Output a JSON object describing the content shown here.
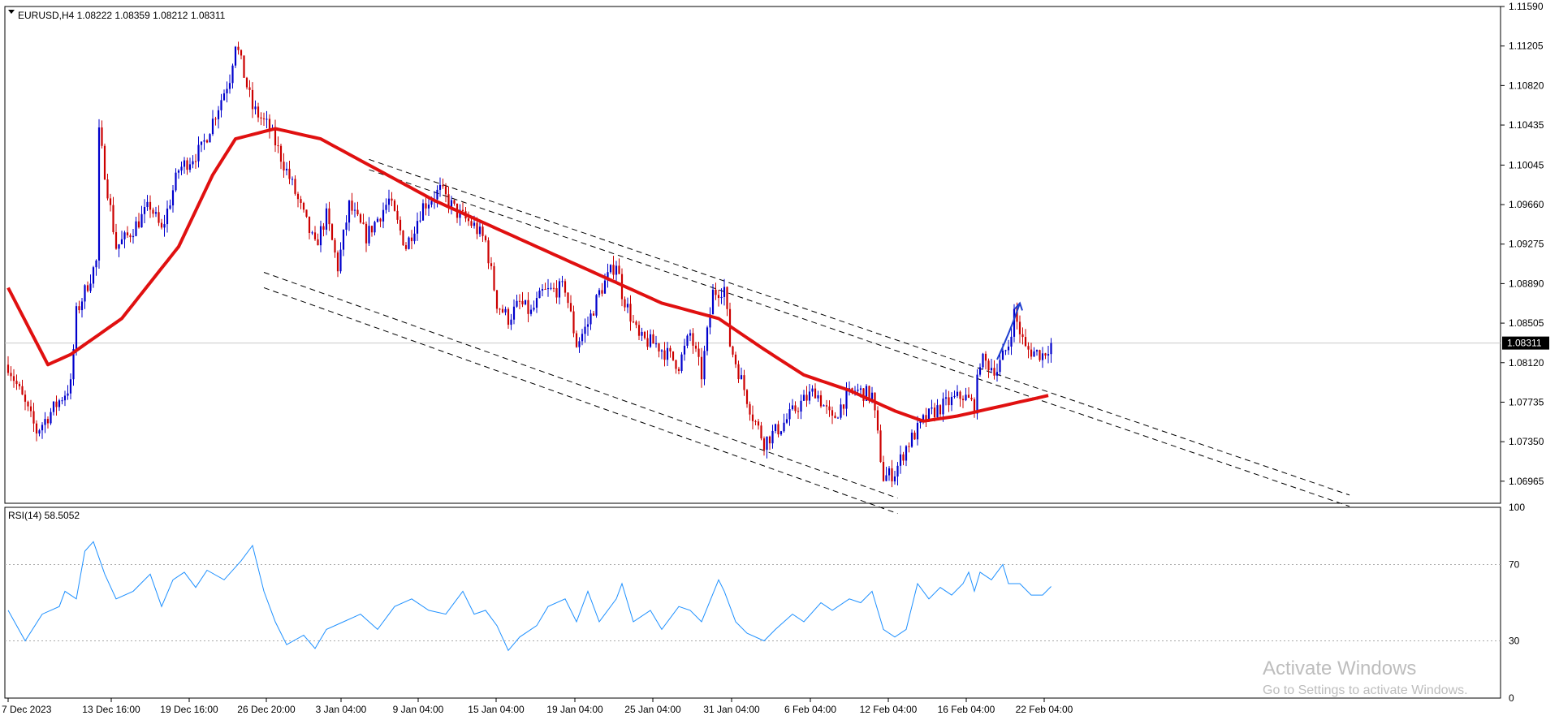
{
  "window": {
    "symbol_line": "EURUSD,H4  1.08222 1.08359 1.08212 1.08311"
  },
  "colors": {
    "bull": "#0000cc",
    "bear": "#cc0000",
    "ma": "#e01010",
    "rsi": "#1e90ff",
    "grid": "#c8c8c8",
    "price_label_bg": "#000000",
    "arrow": "#1f3fd0"
  },
  "watermark": {
    "title": "Activate Windows",
    "subtitle": "Go to Settings to activate Windows."
  },
  "chart_data": [
    {
      "type": "candlestick",
      "title": "EURUSD,H4  1.08222 1.08359 1.08212 1.08311",
      "ylim": [
        1.0675,
        1.1159
      ],
      "yticks": [
        "1.11590",
        "1.11205",
        "1.10820",
        "1.10435",
        "1.10045",
        "1.09660",
        "1.09275",
        "1.08890",
        "1.08505",
        "1.08120",
        "1.07735",
        "1.07350",
        "1.06965"
      ],
      "current_price": "1.08311",
      "xticks": [
        "7 Dec 2023",
        "13 Dec 16:00",
        "19 Dec 16:00",
        "26 Dec 20:00",
        "3 Jan 04:00",
        "9 Jan 04:00",
        "15 Jan 04:00",
        "19 Jan 04:00",
        "25 Jan 04:00",
        "31 Jan 04:00",
        "6 Feb 04:00",
        "12 Feb 04:00",
        "16 Feb 04:00",
        "22 Feb 04:00"
      ],
      "close_path": [
        [
          0,
          1.081
        ],
        [
          10,
          1.0745
        ],
        [
          22,
          1.079
        ],
        [
          24,
          1.086
        ],
        [
          31,
          1.091
        ],
        [
          32,
          1.1035
        ],
        [
          38,
          1.0925
        ],
        [
          42,
          1.0935
        ],
        [
          50,
          1.0965
        ],
        [
          54,
          1.094
        ],
        [
          60,
          1.1
        ],
        [
          68,
          1.102
        ],
        [
          78,
          1.109
        ],
        [
          80,
          1.1125
        ],
        [
          86,
          1.106
        ],
        [
          92,
          1.104
        ],
        [
          100,
          1.0985
        ],
        [
          108,
          1.0925
        ],
        [
          112,
          1.0955
        ],
        [
          116,
          1.0905
        ],
        [
          120,
          1.0965
        ],
        [
          126,
          1.0935
        ],
        [
          134,
          1.097
        ],
        [
          140,
          1.0925
        ],
        [
          146,
          1.0965
        ],
        [
          152,
          1.098
        ],
        [
          158,
          1.0958
        ],
        [
          164,
          1.0945
        ],
        [
          168,
          1.093
        ],
        [
          172,
          1.087
        ],
        [
          176,
          1.0855
        ],
        [
          180,
          1.087
        ],
        [
          184,
          1.086
        ],
        [
          188,
          1.088
        ],
        [
          196,
          1.0885
        ],
        [
          200,
          1.083
        ],
        [
          204,
          1.085
        ],
        [
          208,
          1.088
        ],
        [
          214,
          1.091
        ],
        [
          216,
          1.088
        ],
        [
          222,
          1.0835
        ],
        [
          228,
          1.083
        ],
        [
          236,
          1.081
        ],
        [
          240,
          1.084
        ],
        [
          244,
          1.08
        ],
        [
          248,
          1.088
        ],
        [
          252,
          1.0885
        ],
        [
          254,
          1.083
        ],
        [
          258,
          1.0795
        ],
        [
          262,
          1.076
        ],
        [
          266,
          1.0735
        ],
        [
          272,
          1.075
        ],
        [
          278,
          1.077
        ],
        [
          284,
          1.0785
        ],
        [
          290,
          1.0755
        ],
        [
          294,
          1.0775
        ],
        [
          298,
          1.0785
        ],
        [
          304,
          1.078
        ],
        [
          308,
          1.07
        ],
        [
          312,
          1.0705
        ],
        [
          316,
          1.073
        ],
        [
          322,
          1.0755
        ],
        [
          326,
          1.0765
        ],
        [
          332,
          1.0775
        ],
        [
          336,
          1.078
        ],
        [
          340,
          1.077
        ],
        [
          342,
          1.0815
        ],
        [
          348,
          1.0805
        ],
        [
          352,
          1.083
        ],
        [
          354,
          1.086
        ],
        [
          358,
          1.0825
        ],
        [
          364,
          1.082
        ],
        [
          367,
          1.08311
        ]
      ],
      "ma_path": [
        [
          0,
          1.0885
        ],
        [
          14,
          1.081
        ],
        [
          22,
          1.082
        ],
        [
          40,
          1.0855
        ],
        [
          60,
          1.0925
        ],
        [
          72,
          1.0995
        ],
        [
          80,
          1.103
        ],
        [
          94,
          1.104
        ],
        [
          110,
          1.103
        ],
        [
          130,
          1.1
        ],
        [
          150,
          1.097
        ],
        [
          170,
          1.0945
        ],
        [
          190,
          1.092
        ],
        [
          210,
          1.0895
        ],
        [
          230,
          1.087
        ],
        [
          250,
          1.0855
        ],
        [
          266,
          1.0825
        ],
        [
          280,
          1.08
        ],
        [
          296,
          1.0785
        ],
        [
          312,
          1.0765
        ],
        [
          322,
          1.0755
        ],
        [
          334,
          1.076
        ],
        [
          350,
          1.077
        ],
        [
          366,
          1.078
        ]
      ],
      "channel_lines": [
        {
          "x1": 127,
          "y1": 1.101,
          "x2": 472,
          "y2": 1.0683
        },
        {
          "x1": 127,
          "y1": 1.1,
          "x2": 472,
          "y2": 1.0672
        },
        {
          "x1": 90,
          "y1": 1.09,
          "x2": 313,
          "y2": 1.068
        },
        {
          "x1": 90,
          "y1": 1.0885,
          "x2": 313,
          "y2": 1.0665
        }
      ],
      "arrow": [
        [
          348,
          1.0815
        ],
        [
          353,
          1.0845
        ],
        [
          356,
          1.087
        ]
      ]
    },
    {
      "type": "line",
      "title": "RSI(14) 58.5052",
      "ylim": [
        0,
        100
      ],
      "yticks": [
        "100",
        "70",
        "30",
        "0"
      ],
      "levels": [
        70,
        30
      ],
      "path": [
        [
          0,
          46
        ],
        [
          6,
          30
        ],
        [
          12,
          44
        ],
        [
          18,
          48
        ],
        [
          20,
          56
        ],
        [
          24,
          52
        ],
        [
          27,
          77
        ],
        [
          30,
          82
        ],
        [
          34,
          65
        ],
        [
          38,
          52
        ],
        [
          44,
          56
        ],
        [
          50,
          65
        ],
        [
          54,
          48
        ],
        [
          58,
          62
        ],
        [
          62,
          66
        ],
        [
          66,
          58
        ],
        [
          70,
          67
        ],
        [
          76,
          62
        ],
        [
          82,
          72
        ],
        [
          86,
          80
        ],
        [
          90,
          56
        ],
        [
          94,
          40
        ],
        [
          98,
          28
        ],
        [
          104,
          33
        ],
        [
          108,
          26
        ],
        [
          112,
          36
        ],
        [
          118,
          40
        ],
        [
          124,
          44
        ],
        [
          130,
          36
        ],
        [
          136,
          48
        ],
        [
          142,
          52
        ],
        [
          148,
          46
        ],
        [
          154,
          44
        ],
        [
          160,
          56
        ],
        [
          164,
          44
        ],
        [
          168,
          46
        ],
        [
          172,
          38
        ],
        [
          176,
          25
        ],
        [
          180,
          32
        ],
        [
          186,
          38
        ],
        [
          190,
          48
        ],
        [
          196,
          52
        ],
        [
          200,
          40
        ],
        [
          204,
          56
        ],
        [
          208,
          40
        ],
        [
          214,
          52
        ],
        [
          216,
          60
        ],
        [
          220,
          40
        ],
        [
          226,
          46
        ],
        [
          230,
          36
        ],
        [
          236,
          48
        ],
        [
          240,
          46
        ],
        [
          244,
          40
        ],
        [
          250,
          62
        ],
        [
          252,
          56
        ],
        [
          256,
          40
        ],
        [
          260,
          34
        ],
        [
          266,
          30
        ],
        [
          270,
          36
        ],
        [
          276,
          44
        ],
        [
          280,
          40
        ],
        [
          286,
          50
        ],
        [
          290,
          46
        ],
        [
          296,
          52
        ],
        [
          300,
          50
        ],
        [
          304,
          56
        ],
        [
          308,
          36
        ],
        [
          312,
          32
        ],
        [
          316,
          36
        ],
        [
          320,
          60
        ],
        [
          324,
          52
        ],
        [
          328,
          58
        ],
        [
          332,
          54
        ],
        [
          336,
          60
        ],
        [
          338,
          66
        ],
        [
          340,
          56
        ],
        [
          342,
          66
        ],
        [
          346,
          62
        ],
        [
          350,
          70
        ],
        [
          352,
          60
        ],
        [
          356,
          60
        ],
        [
          360,
          54
        ],
        [
          364,
          54
        ],
        [
          367,
          58.5
        ]
      ]
    }
  ]
}
